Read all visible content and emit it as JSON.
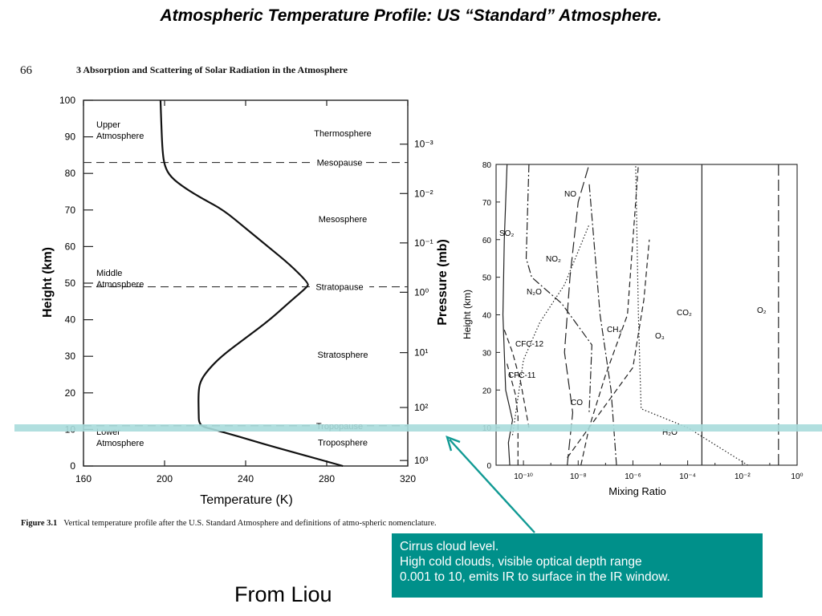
{
  "slide_title": "Atmospheric Temperature Profile:  US “Standard” Atmosphere.",
  "book": {
    "page_number": "66",
    "chapter_title": "3   Absorption and Scattering of Solar Radiation in the Atmosphere",
    "figure_label": "Figure 3.1",
    "figure_caption": "Vertical temperature profile after the U.S. Standard Atmosphere and definitions of atmo-spheric nomenclature."
  },
  "note": {
    "line1": "Cirrus cloud level.",
    "line2": "High cold clouds, visible optical depth range",
    "line3": "0.001 to 10, emits IR to surface in the IR window."
  },
  "from_label": "From Liou",
  "chart_data": [
    {
      "type": "line",
      "xlabel": "Temperature (K)",
      "ylabel": "Height (km)",
      "y2label": "Pressure (mb)",
      "xlim": [
        160,
        320
      ],
      "ylim": [
        0,
        100
      ],
      "x_ticks": [
        "160",
        "200",
        "240",
        "280",
        "320"
      ],
      "y_ticks": [
        "0",
        "10",
        "20",
        "30",
        "40",
        "50",
        "60",
        "70",
        "80",
        "90",
        "100"
      ],
      "pressure_ticks": [
        {
          "height": 1.5,
          "label": "10³"
        },
        {
          "height": 16,
          "label": "10²"
        },
        {
          "height": 31,
          "label": "10¹"
        },
        {
          "height": 47.5,
          "label": "10⁰"
        },
        {
          "height": 61,
          "label": "10⁻¹"
        },
        {
          "height": 74.5,
          "label": "10⁻²"
        },
        {
          "height": 88,
          "label": "10⁻³"
        }
      ],
      "layer_boundaries": [
        {
          "name": "Tropopause",
          "height": 11
        },
        {
          "name": "Stratopause",
          "height": 49
        },
        {
          "name": "Mesopause",
          "height": 83
        }
      ],
      "layers": [
        "Troposphere",
        "Stratosphere",
        "Mesosphere",
        "Thermosphere"
      ],
      "regions": [
        {
          "line1": "Lower",
          "line2": "Atmosphere"
        },
        {
          "line1": "Middle",
          "line2": "Atmosphere"
        },
        {
          "line1": "Upper",
          "line2": "Atmosphere"
        }
      ],
      "series": [
        {
          "x": [
            288,
            275,
            262,
            249,
            237,
            224,
            217,
            216.8,
            216.7,
            217.5,
            221,
            228,
            240,
            252,
            262,
            270.5,
            271,
            262,
            251,
            240,
            229,
            219,
            210,
            203,
            200,
            199,
            198.5,
            198
          ],
          "y": [
            0,
            2,
            4,
            6,
            8,
            10,
            11,
            15,
            20,
            23,
            26,
            30,
            35,
            40,
            45,
            49,
            50,
            55,
            60,
            65,
            70,
            73,
            76,
            79,
            82,
            86,
            92,
            100
          ]
        }
      ]
    },
    {
      "type": "line",
      "xlabel": "Mixing Ratio",
      "ylabel": "Height (km)",
      "xscale": "log",
      "xlim": [
        "10⁻¹¹",
        "10⁰"
      ],
      "ylim": [
        0,
        80
      ],
      "x_ticks": [
        "10⁻¹⁰",
        "10⁻⁸",
        "10⁻⁶",
        "10⁻⁴",
        "10⁻²",
        "10⁰"
      ],
      "y_ticks": [
        "0",
        "10",
        "20",
        "30",
        "40",
        "50",
        "60",
        "70",
        "80"
      ],
      "series": [
        {
          "name": "SO2",
          "style": "solid",
          "x": [
            -10.5,
            -10.55,
            -10.4,
            -10.65,
            -10.75,
            -10.7,
            -10.6
          ],
          "y": [
            0,
            6,
            12,
            20,
            40,
            60,
            80
          ]
        },
        {
          "name": "NO",
          "style": "longdash",
          "x": [
            -8.4,
            -8.2,
            -8.5,
            -8.3,
            -8.0,
            -7.6
          ],
          "y": [
            0,
            14,
            30,
            50,
            70,
            80
          ]
        },
        {
          "name": "NO2",
          "style": "dashdot",
          "x": [
            -9.8,
            -9.9,
            -9.7,
            -8.6,
            -7.5,
            -7.6
          ],
          "y": [
            80,
            55,
            50,
            43,
            32,
            14
          ]
        },
        {
          "name": "N2O",
          "style": "dotted",
          "x": [
            -10.4,
            -10.0,
            -9.4,
            -8.5,
            -7.6
          ],
          "y": [
            8,
            28,
            38,
            48,
            64
          ]
        },
        {
          "name": "CFC-12",
          "style": "dashed",
          "x": [
            -10.7,
            -10.4,
            -10.1,
            -9.8
          ],
          "y": [
            36,
            30,
            22,
            10
          ]
        },
        {
          "name": "CFC-11",
          "style": "dashed",
          "x": [
            -10.6,
            -10.3,
            -10.2,
            -10.2
          ],
          "y": [
            27,
            19,
            13,
            0
          ]
        },
        {
          "name": "CH4",
          "style": "dashdot",
          "x": [
            -6.6,
            -6.8,
            -7.2,
            -7.6
          ],
          "y": [
            0,
            20,
            40,
            75
          ]
        },
        {
          "name": "CO",
          "style": "dashed",
          "x": [
            -7.9,
            -7.6,
            -7.0,
            -6.2,
            -5.8
          ],
          "y": [
            0,
            10,
            24,
            40,
            80
          ]
        },
        {
          "name": "O3",
          "style": "dashed",
          "x": [
            -8.4,
            -7.4,
            -6.0,
            -5.6,
            -5.4
          ],
          "y": [
            2,
            12,
            26,
            44,
            60
          ]
        },
        {
          "name": "H2O",
          "style": "dotted",
          "x": [
            -1.8,
            -4.0,
            -5.7,
            -5.8,
            -5.9
          ],
          "y": [
            0,
            10,
            15,
            40,
            80
          ]
        },
        {
          "name": "CO2",
          "style": "solid",
          "x": [
            -3.48,
            -3.48
          ],
          "y": [
            0,
            80
          ]
        },
        {
          "name": "O2",
          "style": "longdash",
          "x": [
            -0.68,
            -0.68
          ],
          "y": [
            0,
            80
          ]
        }
      ]
    }
  ]
}
